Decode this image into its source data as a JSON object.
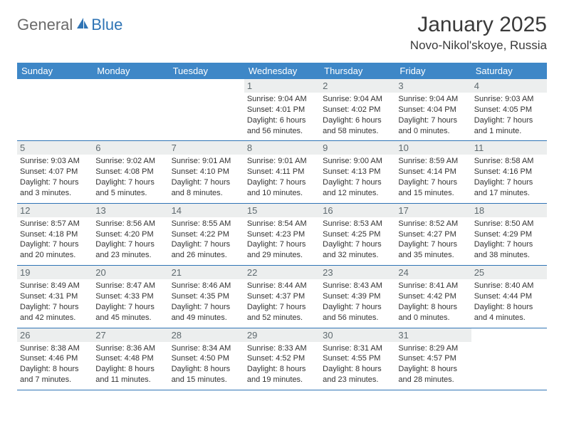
{
  "logo": {
    "text1": "General",
    "text2": "Blue"
  },
  "header": {
    "title": "January 2025",
    "location": "Novo-Nikol'skoye, Russia"
  },
  "dayNames": [
    "Sunday",
    "Monday",
    "Tuesday",
    "Wednesday",
    "Thursday",
    "Friday",
    "Saturday"
  ],
  "colors": {
    "headerBar": "#3e87c7",
    "dayNumBg": "#eceeee",
    "rowBorder": "#2f74b5",
    "text": "#333333"
  },
  "weeks": [
    [
      null,
      null,
      null,
      {
        "n": "1",
        "sr": "9:04 AM",
        "ss": "4:01 PM",
        "d1": "Daylight: 6 hours",
        "d2": "and 56 minutes."
      },
      {
        "n": "2",
        "sr": "9:04 AM",
        "ss": "4:02 PM",
        "d1": "Daylight: 6 hours",
        "d2": "and 58 minutes."
      },
      {
        "n": "3",
        "sr": "9:04 AM",
        "ss": "4:04 PM",
        "d1": "Daylight: 7 hours",
        "d2": "and 0 minutes."
      },
      {
        "n": "4",
        "sr": "9:03 AM",
        "ss": "4:05 PM",
        "d1": "Daylight: 7 hours",
        "d2": "and 1 minute."
      }
    ],
    [
      {
        "n": "5",
        "sr": "9:03 AM",
        "ss": "4:07 PM",
        "d1": "Daylight: 7 hours",
        "d2": "and 3 minutes."
      },
      {
        "n": "6",
        "sr": "9:02 AM",
        "ss": "4:08 PM",
        "d1": "Daylight: 7 hours",
        "d2": "and 5 minutes."
      },
      {
        "n": "7",
        "sr": "9:01 AM",
        "ss": "4:10 PM",
        "d1": "Daylight: 7 hours",
        "d2": "and 8 minutes."
      },
      {
        "n": "8",
        "sr": "9:01 AM",
        "ss": "4:11 PM",
        "d1": "Daylight: 7 hours",
        "d2": "and 10 minutes."
      },
      {
        "n": "9",
        "sr": "9:00 AM",
        "ss": "4:13 PM",
        "d1": "Daylight: 7 hours",
        "d2": "and 12 minutes."
      },
      {
        "n": "10",
        "sr": "8:59 AM",
        "ss": "4:14 PM",
        "d1": "Daylight: 7 hours",
        "d2": "and 15 minutes."
      },
      {
        "n": "11",
        "sr": "8:58 AM",
        "ss": "4:16 PM",
        "d1": "Daylight: 7 hours",
        "d2": "and 17 minutes."
      }
    ],
    [
      {
        "n": "12",
        "sr": "8:57 AM",
        "ss": "4:18 PM",
        "d1": "Daylight: 7 hours",
        "d2": "and 20 minutes."
      },
      {
        "n": "13",
        "sr": "8:56 AM",
        "ss": "4:20 PM",
        "d1": "Daylight: 7 hours",
        "d2": "and 23 minutes."
      },
      {
        "n": "14",
        "sr": "8:55 AM",
        "ss": "4:22 PM",
        "d1": "Daylight: 7 hours",
        "d2": "and 26 minutes."
      },
      {
        "n": "15",
        "sr": "8:54 AM",
        "ss": "4:23 PM",
        "d1": "Daylight: 7 hours",
        "d2": "and 29 minutes."
      },
      {
        "n": "16",
        "sr": "8:53 AM",
        "ss": "4:25 PM",
        "d1": "Daylight: 7 hours",
        "d2": "and 32 minutes."
      },
      {
        "n": "17",
        "sr": "8:52 AM",
        "ss": "4:27 PM",
        "d1": "Daylight: 7 hours",
        "d2": "and 35 minutes."
      },
      {
        "n": "18",
        "sr": "8:50 AM",
        "ss": "4:29 PM",
        "d1": "Daylight: 7 hours",
        "d2": "and 38 minutes."
      }
    ],
    [
      {
        "n": "19",
        "sr": "8:49 AM",
        "ss": "4:31 PM",
        "d1": "Daylight: 7 hours",
        "d2": "and 42 minutes."
      },
      {
        "n": "20",
        "sr": "8:47 AM",
        "ss": "4:33 PM",
        "d1": "Daylight: 7 hours",
        "d2": "and 45 minutes."
      },
      {
        "n": "21",
        "sr": "8:46 AM",
        "ss": "4:35 PM",
        "d1": "Daylight: 7 hours",
        "d2": "and 49 minutes."
      },
      {
        "n": "22",
        "sr": "8:44 AM",
        "ss": "4:37 PM",
        "d1": "Daylight: 7 hours",
        "d2": "and 52 minutes."
      },
      {
        "n": "23",
        "sr": "8:43 AM",
        "ss": "4:39 PM",
        "d1": "Daylight: 7 hours",
        "d2": "and 56 minutes."
      },
      {
        "n": "24",
        "sr": "8:41 AM",
        "ss": "4:42 PM",
        "d1": "Daylight: 8 hours",
        "d2": "and 0 minutes."
      },
      {
        "n": "25",
        "sr": "8:40 AM",
        "ss": "4:44 PM",
        "d1": "Daylight: 8 hours",
        "d2": "and 4 minutes."
      }
    ],
    [
      {
        "n": "26",
        "sr": "8:38 AM",
        "ss": "4:46 PM",
        "d1": "Daylight: 8 hours",
        "d2": "and 7 minutes."
      },
      {
        "n": "27",
        "sr": "8:36 AM",
        "ss": "4:48 PM",
        "d1": "Daylight: 8 hours",
        "d2": "and 11 minutes."
      },
      {
        "n": "28",
        "sr": "8:34 AM",
        "ss": "4:50 PM",
        "d1": "Daylight: 8 hours",
        "d2": "and 15 minutes."
      },
      {
        "n": "29",
        "sr": "8:33 AM",
        "ss": "4:52 PM",
        "d1": "Daylight: 8 hours",
        "d2": "and 19 minutes."
      },
      {
        "n": "30",
        "sr": "8:31 AM",
        "ss": "4:55 PM",
        "d1": "Daylight: 8 hours",
        "d2": "and 23 minutes."
      },
      {
        "n": "31",
        "sr": "8:29 AM",
        "ss": "4:57 PM",
        "d1": "Daylight: 8 hours",
        "d2": "and 28 minutes."
      },
      null
    ]
  ]
}
